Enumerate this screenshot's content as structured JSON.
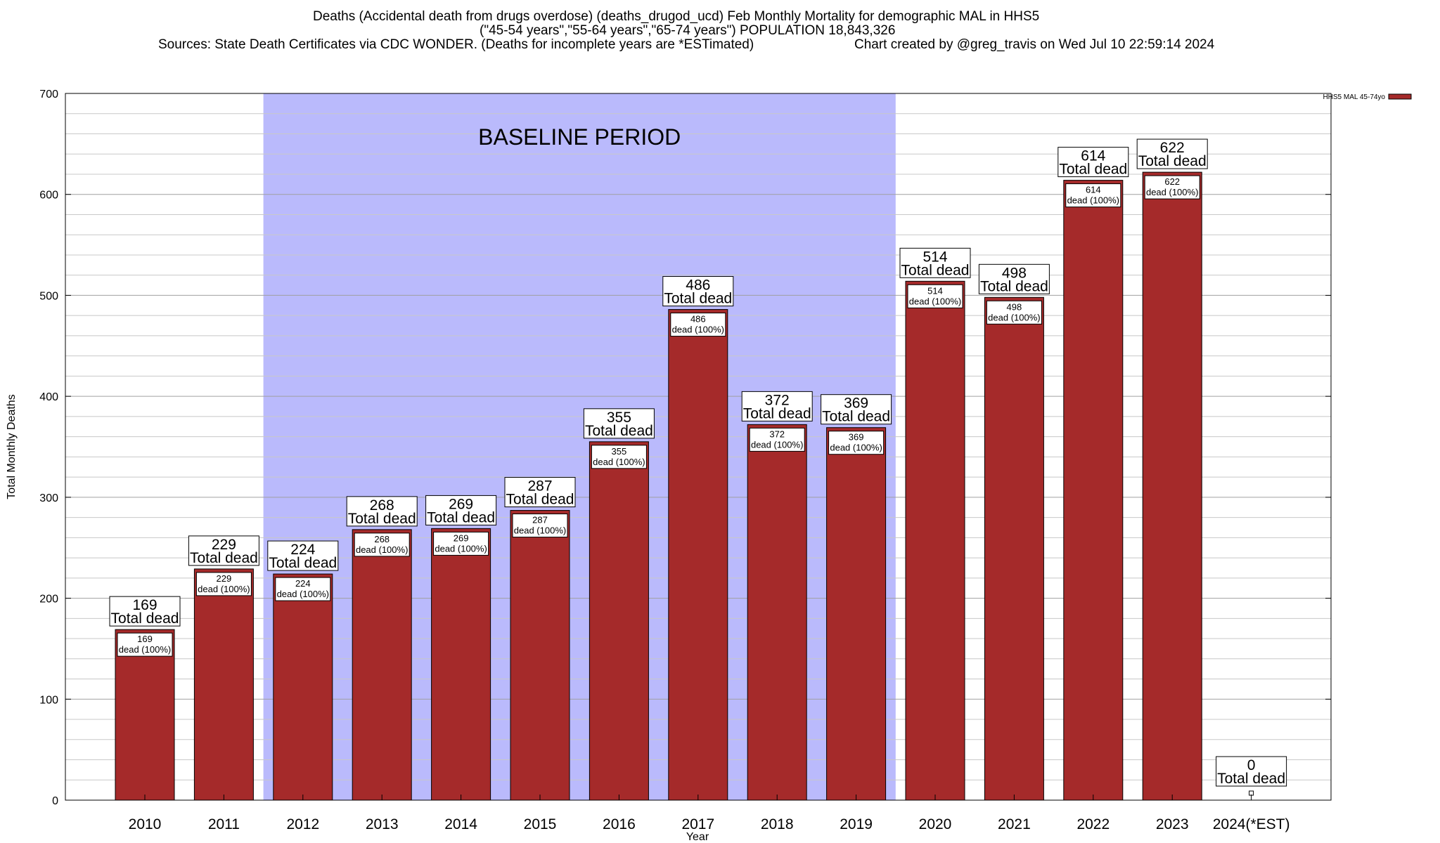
{
  "titles": {
    "line1": "Deaths (Accidental death from drugs overdose) (deaths_drugod_ucd) Feb Monthly Mortality for demographic MAL in HHS5",
    "line2": "(\"45-54 years\",\"55-64 years\",\"65-74 years\") POPULATION 18,843,326",
    "line3_left": "Sources: State Death Certificates via CDC WONDER. (Deaths for incomplete years are *ESTimated)",
    "line3_right": "Chart created by @greg_travis on Wed Jul 10 22:59:14 2024"
  },
  "colors": {
    "bar": "#a52a2a",
    "baseline_band": "#babafc",
    "grid": "#c8c8c8"
  },
  "chart_data": {
    "type": "bar",
    "title": "Deaths (Accidental death from drugs overdose) (deaths_drugod_ucd) Feb Monthly Mortality for demographic MAL in HHS5",
    "xlabel": "Year",
    "ylabel": "Total Monthly Deaths",
    "ylim": [
      0,
      700
    ],
    "yticks": [
      0,
      100,
      200,
      300,
      400,
      500,
      600,
      700
    ],
    "grid": true,
    "legend_position": "top-right",
    "categories": [
      "2010",
      "2011",
      "2012",
      "2013",
      "2014",
      "2015",
      "2016",
      "2017",
      "2018",
      "2019",
      "2020",
      "2021",
      "2022",
      "2023",
      "2024(*EST)"
    ],
    "series": [
      {
        "name": "HHS5 MAL 45-74yo",
        "values": [
          169,
          229,
          224,
          268,
          269,
          287,
          355,
          486,
          372,
          369,
          514,
          498,
          614,
          622,
          0
        ]
      }
    ],
    "total_label": "Total dead",
    "inner_label_suffix": "dead (100%)",
    "baseline_period": {
      "label": "BASELINE PERIOD",
      "from": "2012",
      "to": "2019"
    }
  }
}
